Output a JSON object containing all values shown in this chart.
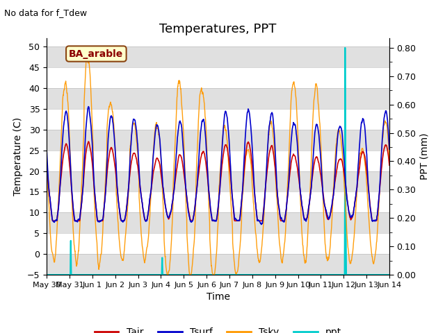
{
  "title": "Temperatures, PPT",
  "subtitle": "No data for f_Tdew",
  "field_label": "BA_arable",
  "xlabel": "Time",
  "ylabel_left": "Temperature (C)",
  "ylabel_right": "PPT (mm)",
  "ylim_left": [
    -5,
    52
  ],
  "ylim_right": [
    0.0,
    0.8333
  ],
  "yticks_left": [
    -5,
    0,
    5,
    10,
    15,
    20,
    25,
    30,
    35,
    40,
    45,
    50
  ],
  "yticks_right": [
    0.0,
    0.1,
    0.2,
    0.3,
    0.4,
    0.5,
    0.6,
    0.7,
    0.8
  ],
  "color_tair": "#cc0000",
  "color_tsurf": "#0000cc",
  "color_tsky": "#ff9900",
  "color_ppt": "#00cccc",
  "color_bg_bands": "#e0e0e0",
  "legend_labels": [
    "Tair",
    "Tsurf",
    "Tsky",
    "ppt"
  ],
  "x_tick_labels": [
    "May 30",
    "May 31",
    "Jun 1",
    "Jun 2",
    "Jun 3",
    "Jun 4",
    "Jun 5",
    "Jun 6",
    "Jun 7",
    "Jun 8",
    "Jun 9",
    "Jun 10",
    "Jun 11",
    "Jun 12",
    "Jun 13",
    "Jun 14"
  ],
  "x_tick_positions": [
    0,
    1,
    2,
    3,
    4,
    5,
    6,
    7,
    8,
    9,
    10,
    11,
    12,
    13,
    14,
    15
  ],
  "figsize": [
    6.4,
    4.8
  ],
  "dpi": 100
}
